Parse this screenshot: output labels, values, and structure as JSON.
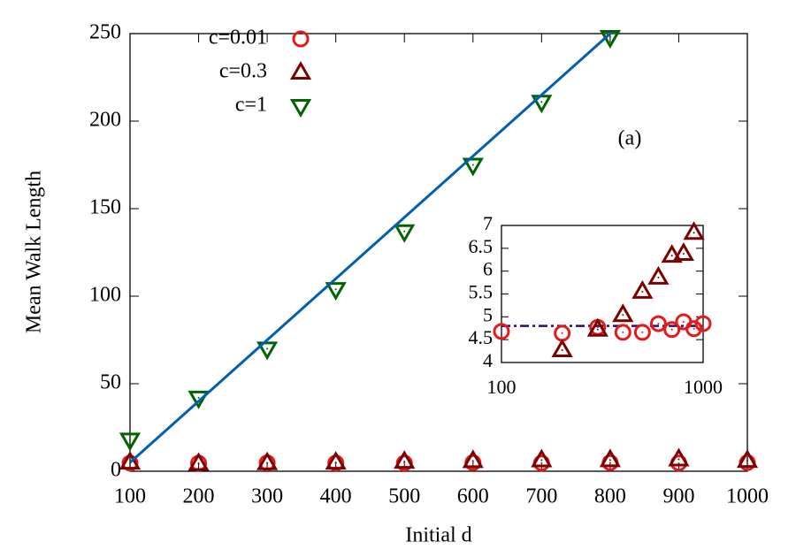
{
  "chart_data": [
    {
      "type": "scatter",
      "xlabel": "Initial d",
      "ylabel": "Mean Walk Length",
      "annotation": "(a)",
      "x": [
        100,
        200,
        300,
        400,
        500,
        600,
        700,
        800,
        900,
        1000
      ],
      "xlim": [
        100,
        1000
      ],
      "xticks": [
        100,
        200,
        300,
        400,
        500,
        600,
        700,
        800,
        900,
        1000
      ],
      "ylim": [
        0,
        250
      ],
      "yticks": [
        0,
        50,
        100,
        150,
        200,
        250
      ],
      "series": [
        {
          "name": "c=0.01",
          "color": "#e41a1c",
          "marker": "circle",
          "values": [
            4.7,
            4.6,
            4.8,
            4.7,
            4.7,
            4.9,
            4.7,
            4.9,
            4.7,
            4.9
          ]
        },
        {
          "name": "c=0.3",
          "color": "#7b0000",
          "marker": "triangle-up",
          "values": [
            5,
            4.3,
            4.7,
            5,
            5.5,
            5.9,
            6.3,
            6.4,
            6.8,
            6
          ]
        },
        {
          "name": "c=1",
          "color": "#006400",
          "marker": "triangle-down",
          "values": [
            18,
            42,
            70,
            104,
            137,
            175,
            211,
            248,
            null,
            null
          ]
        },
        {
          "color": "#0060ad",
          "style": "line",
          "x": [
            100,
            800
          ],
          "values": [
            5,
            250
          ]
        }
      ]
    },
    {
      "type": "scatter",
      "xlog": true,
      "x": [
        100,
        200,
        300,
        400,
        500,
        600,
        700,
        800,
        900,
        1000
      ],
      "xlim": [
        100,
        1000
      ],
      "xticks": [
        100,
        1000
      ],
      "ylim": [
        4,
        7
      ],
      "yticks": [
        4,
        4.5,
        5,
        5.5,
        6,
        6.5,
        7
      ],
      "series": [
        {
          "color": "#2e0a6e",
          "style": "dashdot",
          "x": [
            100,
            1000
          ],
          "values": [
            4.8,
            4.8
          ]
        },
        {
          "color": "#e41a1c",
          "marker": "circle",
          "values": [
            4.68,
            4.64,
            4.77,
            4.66,
            4.66,
            4.85,
            4.72,
            4.89,
            4.74,
            4.85
          ]
        },
        {
          "color": "#7b0000",
          "marker": "triangle-up",
          "values": [
            null,
            4.27,
            4.72,
            5.04,
            5.55,
            5.86,
            6.34,
            6.38,
            6.84,
            null
          ]
        }
      ]
    }
  ]
}
